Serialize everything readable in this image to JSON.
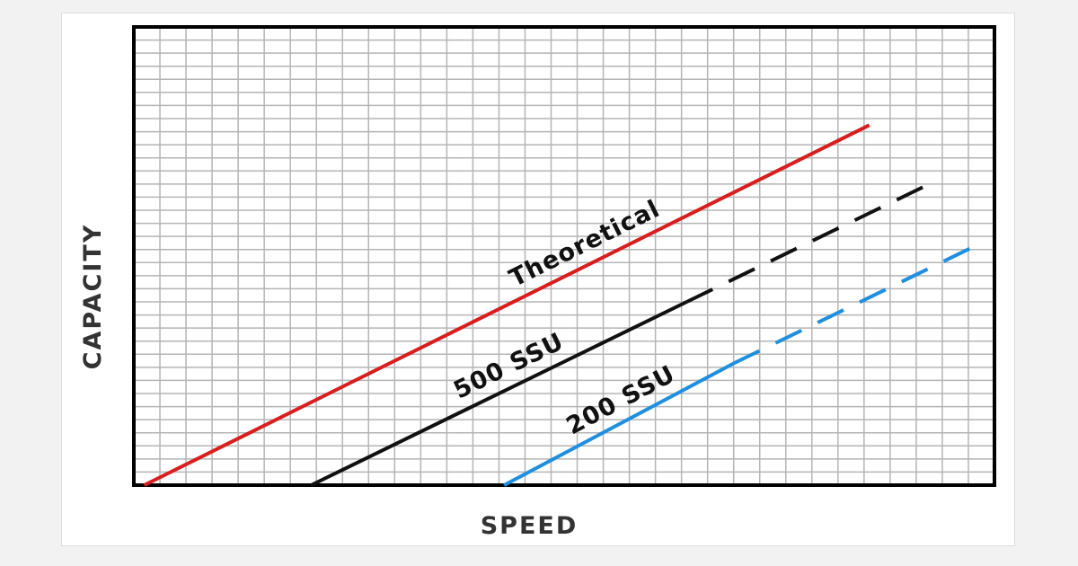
{
  "chart_data": {
    "type": "line",
    "xlabel": "SPEED",
    "ylabel": "CAPACITY",
    "xlim": [
      0,
      33
    ],
    "ylim": [
      0,
      35
    ],
    "grid": true,
    "series": [
      {
        "name": "Theoretical",
        "color": "#d81e1e",
        "solid": [
          [
            0.4,
            0
          ],
          [
            28.2,
            27.5
          ]
        ],
        "dashed": null
      },
      {
        "name": "500 SSU",
        "color": "#111111",
        "solid": [
          [
            6.8,
            0
          ],
          [
            21.2,
            14
          ]
        ],
        "dashed": [
          [
            21.2,
            14
          ],
          [
            30.5,
            23
          ]
        ]
      },
      {
        "name": "200 SSU",
        "color": "#1f8fdf",
        "solid": [
          [
            14.2,
            0
          ],
          [
            23,
            9.3
          ]
        ],
        "dashed": [
          [
            23,
            9.3
          ],
          [
            32.5,
            18.5
          ]
        ]
      }
    ]
  }
}
